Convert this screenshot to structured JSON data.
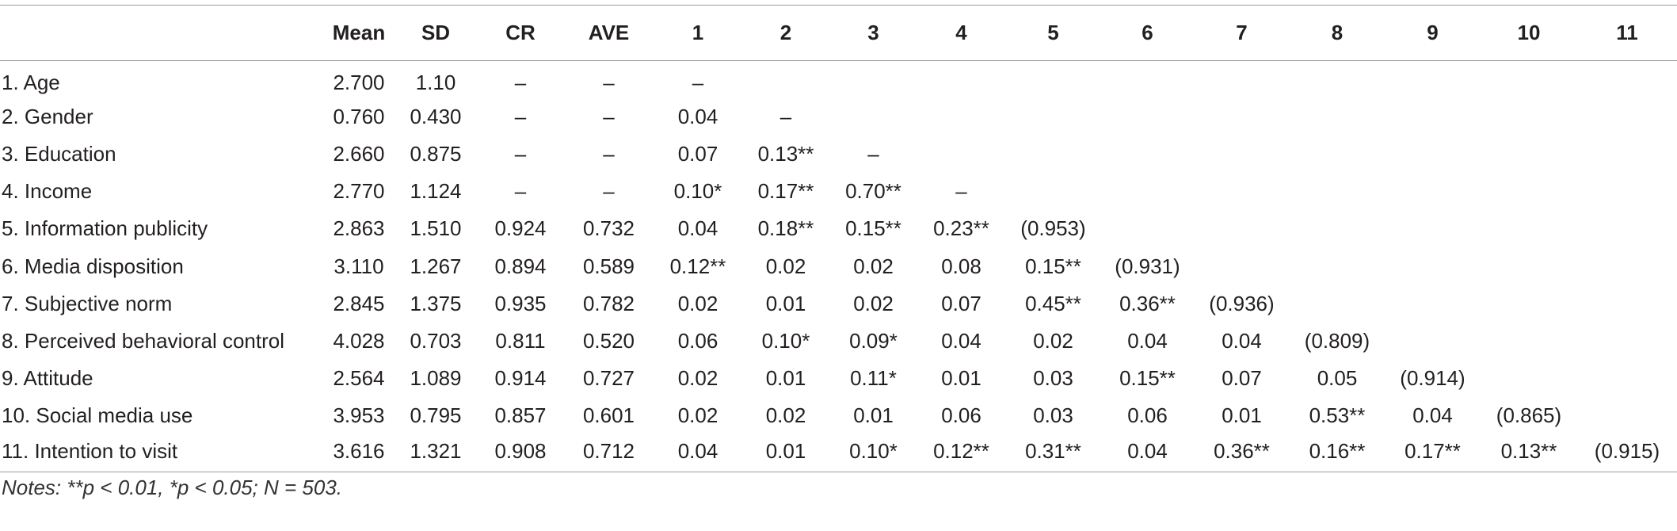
{
  "table": {
    "headers": [
      "",
      "Mean",
      "SD",
      "CR",
      "AVE",
      "1",
      "2",
      "3",
      "4",
      "5",
      "6",
      "7",
      "8",
      "9",
      "10",
      "11"
    ],
    "rows": [
      [
        "1. Age",
        "2.700",
        "1.10",
        "–",
        "–",
        "–",
        "",
        "",
        "",
        "",
        "",
        "",
        "",
        "",
        "",
        ""
      ],
      [
        "2. Gender",
        "0.760",
        "0.430",
        "–",
        "–",
        "0.04",
        "–",
        "",
        "",
        "",
        "",
        "",
        "",
        "",
        "",
        ""
      ],
      [
        "3. Education",
        "2.660",
        "0.875",
        "–",
        "–",
        "0.07",
        "0.13**",
        "–",
        "",
        "",
        "",
        "",
        "",
        "",
        "",
        ""
      ],
      [
        "4. Income",
        "2.770",
        "1.124",
        "–",
        "–",
        "0.10*",
        "0.17**",
        "0.70**",
        "–",
        "",
        "",
        "",
        "",
        "",
        "",
        ""
      ],
      [
        "5. Information publicity",
        "2.863",
        "1.510",
        "0.924",
        "0.732",
        "0.04",
        "0.18**",
        "0.15**",
        "0.23**",
        "(0.953)",
        "",
        "",
        "",
        "",
        "",
        ""
      ],
      [
        "6. Media disposition",
        "3.110",
        "1.267",
        "0.894",
        "0.589",
        "0.12**",
        "0.02",
        "0.02",
        "0.08",
        "0.15**",
        "(0.931)",
        "",
        "",
        "",
        "",
        ""
      ],
      [
        "7. Subjective norm",
        "2.845",
        "1.375",
        "0.935",
        "0.782",
        "0.02",
        "0.01",
        "0.02",
        "0.07",
        "0.45**",
        "0.36**",
        "(0.936)",
        "",
        "",
        "",
        ""
      ],
      [
        "8. Perceived behavioral control",
        "4.028",
        "0.703",
        "0.811",
        "0.520",
        "0.06",
        "0.10*",
        "0.09*",
        "0.04",
        "0.02",
        "0.04",
        "0.04",
        "(0.809)",
        "",
        "",
        ""
      ],
      [
        "9. Attitude",
        "2.564",
        "1.089",
        "0.914",
        "0.727",
        "0.02",
        "0.01",
        "0.11*",
        "0.01",
        "0.03",
        "0.15**",
        "0.07",
        "0.05",
        "(0.914)",
        "",
        ""
      ],
      [
        "10. Social media use",
        "3.953",
        "0.795",
        "0.857",
        "0.601",
        "0.02",
        "0.02",
        "0.01",
        "0.06",
        "0.03",
        "0.06",
        "0.01",
        "0.53**",
        "0.04",
        "(0.865)",
        ""
      ],
      [
        "11. Intention to visit",
        "3.616",
        "1.321",
        "0.908",
        "0.712",
        "0.04",
        "0.01",
        "0.10*",
        "0.12**",
        "0.31**",
        "0.04",
        "0.36**",
        "0.16**",
        "0.17**",
        "0.13**",
        "(0.915)"
      ]
    ]
  },
  "notes": "Notes: **p < 0.01, *p < 0.05; N = 503."
}
